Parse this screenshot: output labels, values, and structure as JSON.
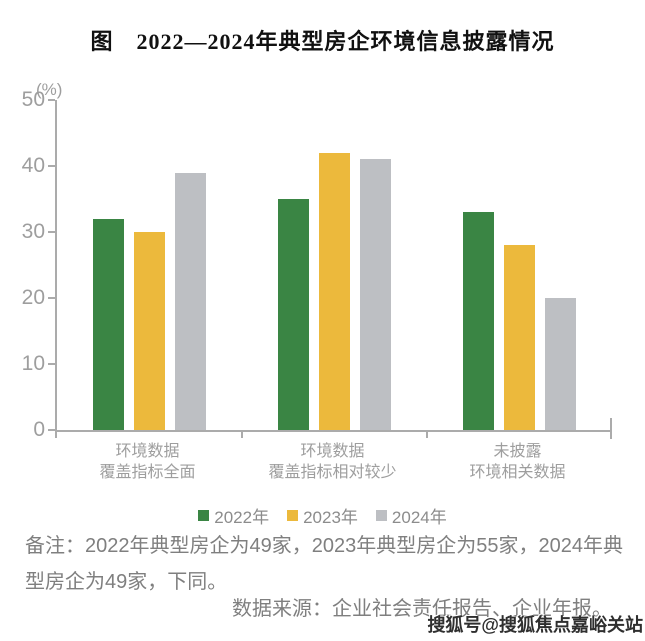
{
  "title": "图　2022—2024年典型房企环境信息披露情况",
  "chart_data": {
    "type": "bar",
    "title": "图　2022—2024年典型房企环境信息披露情况",
    "unit": "(%)",
    "categories": [
      [
        "环境数据",
        "覆盖指标全面"
      ],
      [
        "环境数据",
        "覆盖指标相对较少"
      ],
      [
        "未披露",
        "环境相关数据"
      ]
    ],
    "series": [
      {
        "name": "2022年",
        "color": "#3A8544",
        "values": [
          32,
          35,
          33
        ]
      },
      {
        "name": "2023年",
        "color": "#ECB93C",
        "values": [
          30,
          42,
          28
        ]
      },
      {
        "name": "2024年",
        "color": "#BDBFC3",
        "values": [
          39,
          41,
          20
        ]
      }
    ],
    "ylim": [
      0,
      50
    ],
    "yticks": [
      0,
      10,
      20,
      30,
      40,
      50
    ],
    "grid": false,
    "legend_position": "bottom"
  },
  "notes": {
    "remark": "备注：2022年典型房企为49家，2023年典型房企为55家，2024年典型房企为49家，下同。",
    "source": "数据来源：企业社会责任报告、企业年报。",
    "watermark": "搜狐号@搜狐焦点嘉峪关站"
  },
  "colors": {
    "axis": "#ABABAB",
    "tick_label": "#9E9E9E",
    "legend_text": "#8C8C8C",
    "note_text": "#7F7F7F"
  }
}
